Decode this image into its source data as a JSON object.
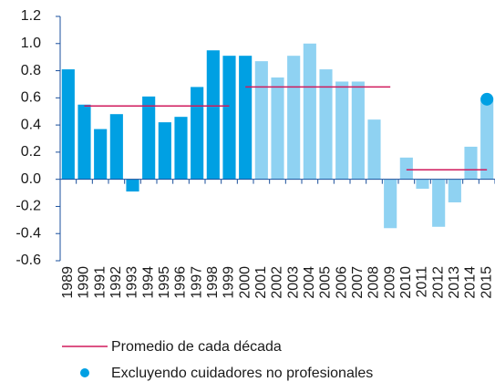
{
  "chart_data": {
    "type": "bar",
    "categories": [
      "1989",
      "1990",
      "1991",
      "1992",
      "1993",
      "1994",
      "1995",
      "1996",
      "1997",
      "1998",
      "1999",
      "2000",
      "2001",
      "2002",
      "2003",
      "2004",
      "2005",
      "2006",
      "2007",
      "2008",
      "2009",
      "2010",
      "2011",
      "2012",
      "2013",
      "2014",
      "2015"
    ],
    "values": [
      0.81,
      0.55,
      0.37,
      0.48,
      -0.09,
      0.61,
      0.42,
      0.46,
      0.68,
      0.95,
      0.91,
      0.91,
      0.87,
      0.75,
      0.91,
      1.0,
      0.81,
      0.72,
      0.72,
      0.44,
      -0.36,
      0.16,
      -0.07,
      -0.35,
      -0.17,
      0.24,
      0.6
    ],
    "colors": [
      "#00a0e3",
      "#00a0e3",
      "#00a0e3",
      "#00a0e3",
      "#00a0e3",
      "#00a0e3",
      "#00a0e3",
      "#00a0e3",
      "#00a0e3",
      "#00a0e3",
      "#00a0e3",
      "#00a0e3",
      "#8fd2f2",
      "#8fd2f2",
      "#8fd2f2",
      "#8fd2f2",
      "#8fd2f2",
      "#8fd2f2",
      "#8fd2f2",
      "#8fd2f2",
      "#8fd2f2",
      "#8fd2f2",
      "#8fd2f2",
      "#8fd2f2",
      "#8fd2f2",
      "#8fd2f2",
      "#8fd2f2"
    ],
    "overlays": [
      {
        "name": "Promedio de cada década",
        "type": "step",
        "color": "#d01a5c",
        "values": [
          null,
          0.54,
          0.54,
          0.54,
          0.54,
          0.54,
          0.54,
          0.54,
          0.54,
          0.54,
          0.54,
          0.68,
          0.68,
          0.68,
          0.68,
          0.68,
          0.68,
          0.68,
          0.68,
          0.68,
          0.68,
          0.07,
          0.07,
          0.07,
          0.07,
          0.07,
          0.07
        ]
      },
      {
        "name": "Excluyendo cuidadores no profesionales",
        "type": "dot",
        "color": "#00a0e3",
        "values": [
          null,
          null,
          null,
          null,
          null,
          null,
          null,
          null,
          null,
          null,
          null,
          null,
          null,
          null,
          null,
          null,
          null,
          null,
          null,
          null,
          null,
          null,
          null,
          null,
          null,
          null,
          0.59
        ]
      }
    ],
    "ylim": [
      -0.6,
      1.2
    ],
    "yticks": [
      {
        "value": -0.6,
        "label": "-0.6"
      },
      {
        "value": -0.4,
        "label": "-0.4"
      },
      {
        "value": -0.2,
        "label": "-0.2"
      },
      {
        "value": 0,
        "label": "0.0"
      },
      {
        "value": 0.2,
        "label": "0.2"
      },
      {
        "value": 0.4,
        "label": "0.4"
      },
      {
        "value": 0.6,
        "label": "0.6"
      },
      {
        "value": 0.8,
        "label": "0.8"
      },
      {
        "value": 1.0,
        "label": "1.0"
      },
      {
        "value": 1.2,
        "label": "1.2"
      }
    ]
  }
}
